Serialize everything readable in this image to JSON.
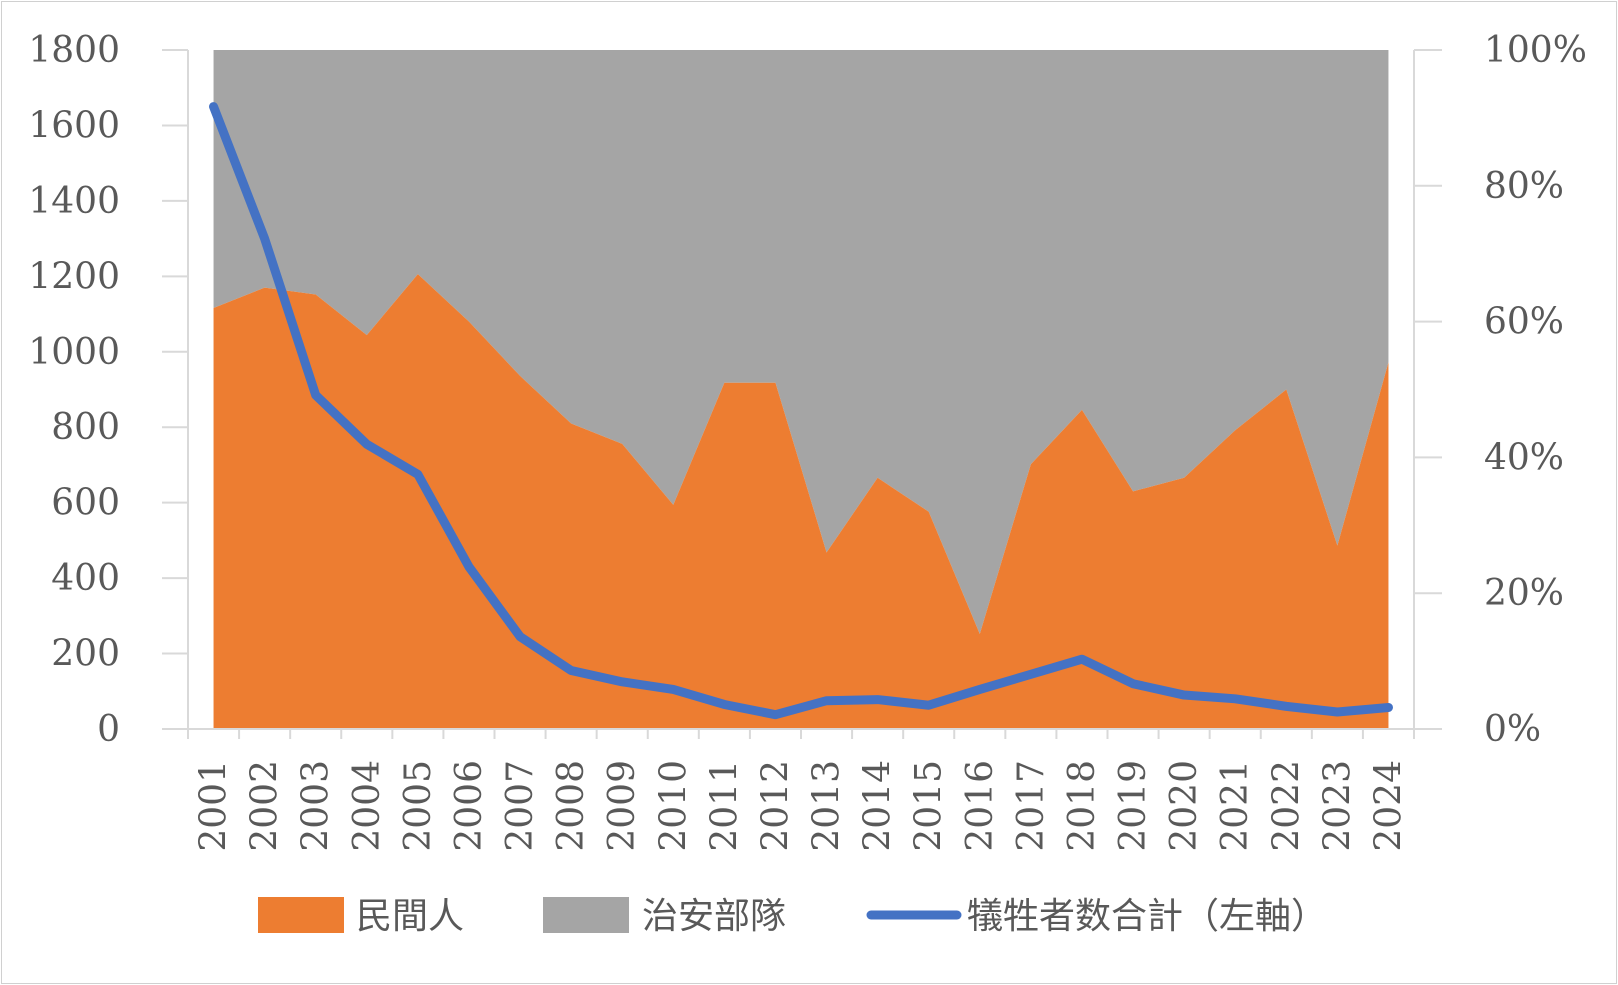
{
  "chart_data": {
    "type": "area",
    "title": "",
    "x": [
      "2001",
      "2002",
      "2003",
      "2004",
      "2005",
      "2006",
      "2007",
      "2008",
      "2009",
      "2010",
      "2011",
      "2012",
      "2013",
      "2014",
      "2015",
      "2016",
      "2017",
      "2018",
      "2019",
      "2020",
      "2021",
      "2022",
      "2023",
      "2024"
    ],
    "series": [
      {
        "name": "民間人",
        "type": "stacked-area-percent",
        "axis": "right",
        "color": "#ED7D31",
        "values": [
          62,
          65,
          64,
          58,
          67,
          60,
          52,
          45,
          42,
          33,
          51,
          51,
          26,
          37,
          32,
          14,
          39,
          47,
          35,
          37,
          44,
          50,
          27,
          54
        ]
      },
      {
        "name": "治安部隊",
        "type": "stacked-area-percent",
        "axis": "right",
        "color": "#A5A5A5",
        "values": [
          38,
          35,
          36,
          42,
          33,
          40,
          48,
          55,
          58,
          67,
          49,
          49,
          74,
          63,
          68,
          86,
          61,
          53,
          65,
          63,
          56,
          50,
          73,
          46
        ]
      },
      {
        "name": "犠牲者数合計（左軸）",
        "type": "line",
        "axis": "left",
        "color": "#4472C4",
        "values": [
          1650,
          1300,
          885,
          755,
          675,
          430,
          245,
          155,
          125,
          105,
          65,
          38,
          75,
          78,
          63,
          105,
          145,
          185,
          120,
          90,
          80,
          60,
          45,
          57
        ]
      }
    ],
    "y_left": {
      "min": 0,
      "max": 1800,
      "ticks": [
        "0",
        "200",
        "400",
        "600",
        "800",
        "1000",
        "1200",
        "1400",
        "1600",
        "1800"
      ]
    },
    "y_right": {
      "min": 0,
      "max": 100,
      "ticks": [
        "0%",
        "20%",
        "40%",
        "60%",
        "80%",
        "100%"
      ]
    },
    "legend": {
      "position": "bottom",
      "entries": [
        "民間人",
        "治安部隊",
        "犠牲者数合計（左軸）"
      ]
    },
    "gridlines": false
  }
}
